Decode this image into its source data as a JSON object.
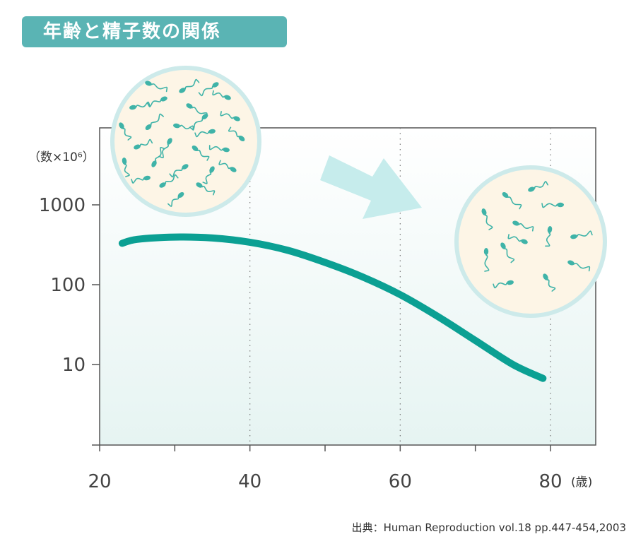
{
  "title": "年齢と精子数の関係",
  "source": "出典：Human Reproduction vol.18 pp.447-454,2003",
  "chart_data": {
    "type": "line",
    "title": "年齢と精子数の関係",
    "xlabel": "(歳)",
    "ylabel": "（数×10⁶）",
    "x_ticks": [
      20,
      40,
      60,
      80
    ],
    "y_ticks": [
      10,
      100,
      1000
    ],
    "xlim": [
      20,
      86
    ],
    "ylim": [
      1,
      8000
    ],
    "y_scale": "log",
    "grid": "dotted vertical at 40, 60, 80",
    "series": [
      {
        "x": [
          23,
          25,
          30,
          35,
          40,
          45,
          50,
          55,
          60,
          65,
          70,
          75,
          79
        ],
        "values": [
          330,
          370,
          395,
          385,
          340,
          270,
          190,
          125,
          75,
          40,
          20,
          10,
          6.7
        ]
      }
    ],
    "colors": {
      "line": "#0ba093",
      "axis": "#555555",
      "plot_bg_top": "#ffffff",
      "plot_bg_bottom": "#e6f4f2",
      "circle_fill": "#fdf5e6",
      "circle_border": "#cdeaea",
      "sperm": "#3fb3a8",
      "arrow": "#c6ecec"
    }
  }
}
